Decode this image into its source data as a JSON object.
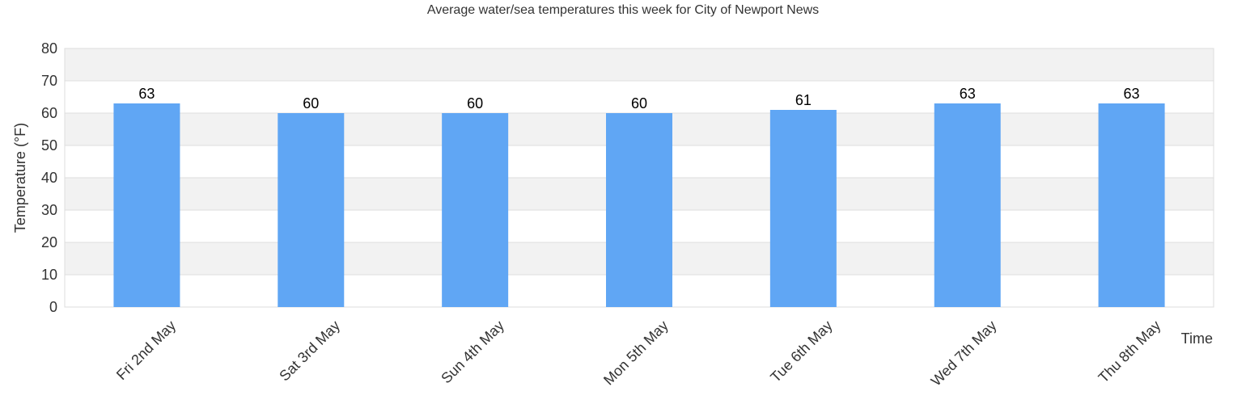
{
  "chart_data": {
    "type": "bar",
    "title": "Average water/sea temperatures this week for City of Newport News",
    "xlabel": "Time",
    "ylabel": "Temperature (°F)",
    "categories": [
      "Fri 2nd May",
      "Sat 3rd May",
      "Sun 4th May",
      "Mon 5th May",
      "Tue 6th May",
      "Wed 7th May",
      "Thu 8th May"
    ],
    "values": [
      63,
      60,
      60,
      60,
      61,
      63,
      63
    ],
    "ylim": [
      0,
      80
    ],
    "yticks": [
      0,
      10,
      20,
      30,
      40,
      50,
      60,
      70,
      80
    ],
    "grid": true,
    "bar_color": "#60a6f4",
    "band_color": "#f2f2f2",
    "grid_color": "#dddddd"
  }
}
